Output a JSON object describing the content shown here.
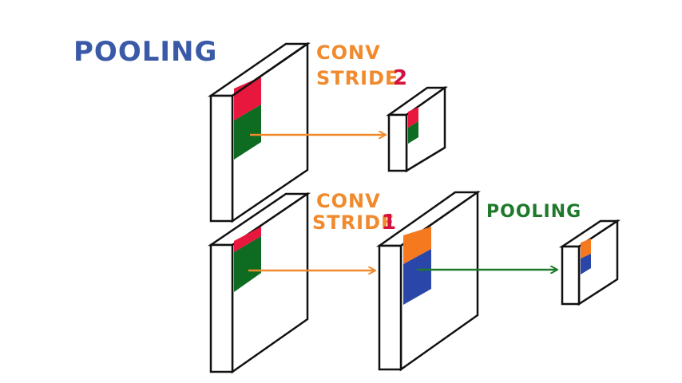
{
  "title": "POOLING",
  "labels": {
    "conv_top": "CONV",
    "stride_top_word": "STRIDE",
    "stride_top_num": "2",
    "conv_bottom": "CONV",
    "stride_bottom_word": "STRIDE",
    "stride_bottom_num": "1",
    "pooling_step": "POOLING"
  },
  "colors": {
    "title": "#3a5aa8",
    "conv": "#f08a2c",
    "stride_num": "#d3123e",
    "pooling_step": "#1e7a2a",
    "patch_red": "#e8173d",
    "patch_green": "#0d6b22",
    "patch_orange": "#f5791f",
    "patch_blue": "#2a46a8",
    "arrow_orange": "#f08a2c",
    "arrow_green": "#1e7a2a",
    "line": "#111111"
  }
}
